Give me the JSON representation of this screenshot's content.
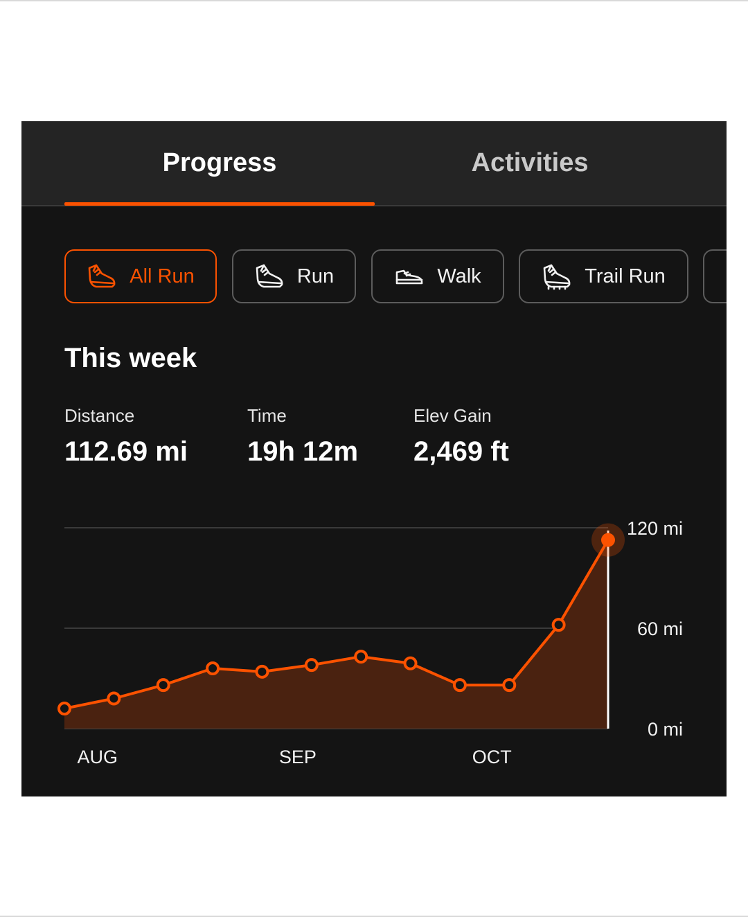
{
  "tabs": {
    "progress": "Progress",
    "activities": "Activities",
    "active": "progress"
  },
  "filters": [
    {
      "label": "All Run",
      "icon": "running-shoe-icon",
      "active": true
    },
    {
      "label": "Run",
      "icon": "running-shoe-icon",
      "active": false
    },
    {
      "label": "Walk",
      "icon": "walking-shoe-icon",
      "active": false
    },
    {
      "label": "Trail Run",
      "icon": "trail-shoe-icon",
      "active": false
    }
  ],
  "section_title": "This week",
  "stats": {
    "distance": {
      "label": "Distance",
      "value": "112.69 mi"
    },
    "time": {
      "label": "Time",
      "value": "19h 12m"
    },
    "elev": {
      "label": "Elev Gain",
      "value": "2,469 ft"
    }
  },
  "colors": {
    "accent": "#fc5200",
    "area_fill": "#4a2210",
    "background": "#141414",
    "tabbar": "#242424"
  },
  "chart_data": {
    "type": "area",
    "series": [
      {
        "values": [
          12,
          18,
          26,
          36,
          34,
          38,
          43,
          39,
          26,
          26,
          62,
          112.69
        ]
      }
    ],
    "x_tick_labels": [
      {
        "label": "AUG",
        "index": 0.67
      },
      {
        "label": "SEP",
        "index": 4.72
      },
      {
        "label": "OCT",
        "index": 8.65
      }
    ],
    "y_tick_labels": [
      {
        "label": "120 mi",
        "value": 120
      },
      {
        "label": "60 mi",
        "value": 60
      },
      {
        "label": "0 mi",
        "value": 0
      }
    ],
    "ylim": [
      0,
      120
    ],
    "grid": true,
    "y_axis_side": "right",
    "highlight_index": 11
  }
}
